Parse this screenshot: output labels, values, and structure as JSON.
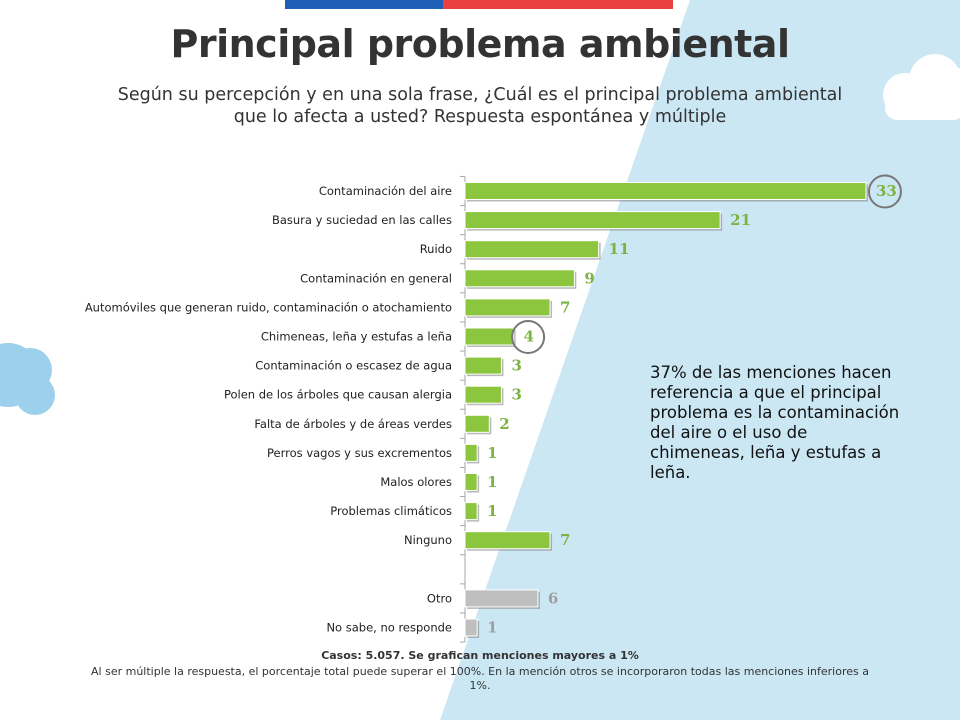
{
  "title": "Principal problema ambiental",
  "subtitle": "Según su percepción y en una sola frase, ¿Cuál es el principal problema ambiental que lo afecta a usted? Respuesta espontánea y múltiple",
  "note": "37% de las menciones hacen referencia a que el principal problema es la contaminación del aire o el uso de chimeneas, leña y estufas a leña.",
  "footer": {
    "main": "Casos: 5.057. Se grafican menciones mayores a 1%",
    "sub": "Al ser múltiple la respuesta, el porcentaje total puede superar el 100%. En la mención otros se incorporaron todas las menciones inferiores a 1%."
  },
  "colors": {
    "green": "#8cc63f",
    "gray": "#bfbfbf",
    "green_text": "#7cb342",
    "gray_text": "#9e9e9e",
    "sky": "#cbe7f4",
    "circle": "#777777"
  },
  "chart_data": {
    "type": "bar",
    "orientation": "horizontal",
    "categories": [
      "Contaminación del aire",
      "Basura y suciedad en las calles",
      "Ruido",
      "Contaminación en general",
      "Automóviles que generan ruido, contaminación o atochamiento",
      "Chimeneas, leña y estufas a leña",
      "Contaminación o escasez de agua",
      "Polen de los árboles que causan alergia",
      "Falta de árboles y de áreas verdes",
      "Perros vagos y sus excrementos",
      "Malos olores",
      "Problemas climáticos",
      "Ninguno",
      "",
      "Otro",
      "No sabe, no responde"
    ],
    "values": [
      33,
      21,
      11,
      9,
      7,
      4,
      3,
      3,
      2,
      1,
      1,
      1,
      7,
      null,
      6,
      1
    ],
    "bar_colors": [
      "green",
      "green",
      "green",
      "green",
      "green",
      "green",
      "green",
      "green",
      "green",
      "green",
      "green",
      "green",
      "green",
      "none",
      "gray",
      "gray"
    ],
    "highlighted": [
      "Contaminación del aire",
      "Chimeneas, leña y estufas a leña"
    ],
    "xlim": [
      0,
      35
    ],
    "grid": false,
    "legend": "none"
  }
}
